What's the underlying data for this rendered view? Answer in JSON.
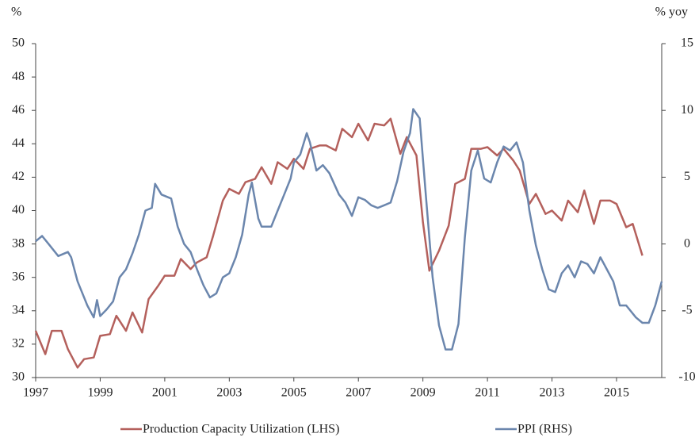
{
  "chart_data": {
    "type": "line",
    "y_label": "%",
    "y2_label": "% yoy",
    "xlim": [
      1997,
      2016.4
    ],
    "xticks": [
      1997,
      1999,
      2001,
      2003,
      2005,
      2007,
      2009,
      2011,
      2013,
      2015
    ],
    "ylim": [
      30,
      50
    ],
    "yticks": [
      30,
      32,
      34,
      36,
      38,
      40,
      42,
      44,
      46,
      48,
      50
    ],
    "y2lim": [
      -10,
      15
    ],
    "y2ticks": [
      -10,
      -5,
      0,
      5,
      10,
      15
    ],
    "grid": false,
    "legend": "bottom",
    "series": [
      {
        "name": "Production Capacity Utilization (LHS)",
        "color": "#b4605c",
        "axis": "y",
        "x": [
          1997.0,
          1997.3,
          1997.5,
          1997.8,
          1998.0,
          1998.3,
          1998.5,
          1998.8,
          1999.0,
          1999.3,
          1999.5,
          1999.8,
          2000.0,
          2000.3,
          2000.5,
          2000.8,
          2001.0,
          2001.3,
          2001.5,
          2001.8,
          2002.0,
          2002.3,
          2002.5,
          2002.8,
          2003.0,
          2003.3,
          2003.5,
          2003.8,
          2004.0,
          2004.3,
          2004.5,
          2004.8,
          2005.0,
          2005.3,
          2005.5,
          2005.8,
          2006.0,
          2006.3,
          2006.5,
          2006.8,
          2007.0,
          2007.3,
          2007.5,
          2007.8,
          2008.0,
          2008.3,
          2008.5,
          2008.8,
          2009.0,
          2009.2,
          2009.5,
          2009.8,
          2010.0,
          2010.3,
          2010.5,
          2010.8,
          2011.0,
          2011.3,
          2011.5,
          2011.8,
          2012.0,
          2012.3,
          2012.5,
          2012.8,
          2013.0,
          2013.3,
          2013.5,
          2013.8,
          2014.0,
          2014.3,
          2014.5,
          2014.8,
          2015.0,
          2015.3,
          2015.5,
          2015.8
        ],
        "values": [
          32.8,
          31.4,
          32.8,
          32.8,
          31.7,
          30.6,
          31.1,
          31.2,
          32.5,
          32.6,
          33.7,
          32.8,
          33.9,
          32.7,
          34.7,
          35.5,
          36.1,
          36.1,
          37.1,
          36.5,
          36.9,
          37.2,
          38.5,
          40.6,
          41.3,
          41.0,
          41.7,
          41.9,
          42.6,
          41.6,
          42.9,
          42.5,
          43.1,
          42.5,
          43.7,
          43.9,
          43.9,
          43.6,
          44.9,
          44.4,
          45.2,
          44.2,
          45.2,
          45.1,
          45.5,
          43.4,
          44.4,
          43.3,
          39.3,
          36.4,
          37.6,
          39.1,
          41.6,
          41.9,
          43.7,
          43.7,
          43.8,
          43.3,
          43.7,
          43.0,
          42.4,
          40.4,
          41.0,
          39.8,
          40.0,
          39.4,
          40.6,
          39.9,
          41.2,
          39.2,
          40.6,
          40.6,
          40.4,
          39.0,
          39.2,
          37.3
        ]
      },
      {
        "name": "PPI (RHS)",
        "color": "#6b86ad",
        "axis": "y2",
        "x": [
          1997.0,
          1997.2,
          1997.4,
          1997.7,
          1998.0,
          1998.1,
          1998.3,
          1998.6,
          1998.8,
          1998.9,
          1999.0,
          1999.2,
          1999.4,
          1999.6,
          1999.8,
          2000.0,
          2000.2,
          2000.4,
          2000.6,
          2000.7,
          2000.9,
          2001.2,
          2001.4,
          2001.6,
          2001.8,
          2002.0,
          2002.2,
          2002.4,
          2002.6,
          2002.8,
          2003.0,
          2003.2,
          2003.4,
          2003.6,
          2003.7,
          2003.9,
          2004.0,
          2004.3,
          2004.5,
          2004.7,
          2004.9,
          2005.0,
          2005.2,
          2005.4,
          2005.5,
          2005.7,
          2005.9,
          2006.1,
          2006.4,
          2006.6,
          2006.8,
          2007.0,
          2007.2,
          2007.4,
          2007.6,
          2007.8,
          2008.0,
          2008.2,
          2008.4,
          2008.6,
          2008.7,
          2008.9,
          2009.1,
          2009.3,
          2009.5,
          2009.7,
          2009.9,
          2010.1,
          2010.3,
          2010.5,
          2010.7,
          2010.9,
          2011.1,
          2011.3,
          2011.5,
          2011.7,
          2011.9,
          2012.1,
          2012.3,
          2012.5,
          2012.7,
          2012.9,
          2013.1,
          2013.3,
          2013.5,
          2013.7,
          2013.9,
          2014.1,
          2014.3,
          2014.5,
          2014.7,
          2014.9,
          2015.1,
          2015.3,
          2015.6,
          2015.8,
          2016.0,
          2016.2,
          2016.4
        ],
        "values": [
          0.2,
          0.6,
          0.0,
          -0.9,
          -0.6,
          -1.0,
          -2.8,
          -4.6,
          -5.5,
          -4.2,
          -5.4,
          -4.9,
          -4.3,
          -2.5,
          -1.9,
          -0.7,
          0.7,
          2.5,
          2.7,
          4.5,
          3.7,
          3.4,
          1.3,
          0.0,
          -0.6,
          -1.9,
          -3.1,
          -4.0,
          -3.7,
          -2.5,
          -2.2,
          -1.0,
          0.7,
          3.7,
          4.6,
          1.9,
          1.3,
          1.3,
          2.5,
          3.7,
          4.9,
          6.1,
          6.7,
          8.3,
          7.6,
          5.5,
          5.9,
          5.3,
          3.7,
          3.1,
          2.1,
          3.5,
          3.3,
          2.9,
          2.7,
          2.9,
          3.1,
          4.7,
          6.9,
          8.3,
          10.1,
          9.4,
          3.4,
          -2.5,
          -6.1,
          -7.9,
          -7.9,
          -6.0,
          0.5,
          5.5,
          7.0,
          4.9,
          4.6,
          6.1,
          7.3,
          7.0,
          7.6,
          6.1,
          2.5,
          -0.1,
          -1.9,
          -3.4,
          -3.6,
          -2.2,
          -1.6,
          -2.5,
          -1.3,
          -1.5,
          -2.2,
          -1.0,
          -1.9,
          -2.8,
          -4.6,
          -4.6,
          -5.5,
          -5.9,
          -5.9,
          -4.6,
          -2.8
        ]
      }
    ]
  }
}
